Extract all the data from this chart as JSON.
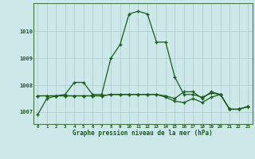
{
  "title": "Graphe pression niveau de la mer (hPa)",
  "background_color": "#cce8e8",
  "grid_color": "#aacccc",
  "line_color": "#1a5c1a",
  "series": [
    [
      1006.9,
      1007.5,
      1007.6,
      1007.65,
      1008.1,
      1008.1,
      1007.65,
      1007.65,
      1009.0,
      1009.5,
      1010.65,
      1010.75,
      1010.65,
      1009.6,
      1009.6,
      1008.3,
      1007.65,
      1007.65,
      1007.55,
      1007.7,
      1007.65,
      1007.1,
      1007.1,
      1007.2
    ],
    [
      1007.6,
      1007.6,
      1007.6,
      1007.6,
      1007.6,
      1007.6,
      1007.6,
      1007.6,
      1007.65,
      1007.65,
      1007.65,
      1007.65,
      1007.65,
      1007.65,
      1007.6,
      1007.5,
      1007.75,
      1007.75,
      1007.5,
      1007.75,
      1007.65,
      1007.1,
      1007.1,
      1007.2
    ],
    [
      1007.6,
      1007.6,
      1007.6,
      1007.6,
      1007.6,
      1007.6,
      1007.6,
      1007.6,
      1007.65,
      1007.65,
      1007.65,
      1007.65,
      1007.65,
      1007.65,
      1007.55,
      1007.4,
      1007.35,
      1007.5,
      1007.35,
      1007.55,
      1007.65,
      1007.1,
      1007.1,
      1007.2
    ]
  ],
  "yticks": [
    1007,
    1008,
    1009,
    1010
  ],
  "xticks": [
    0,
    1,
    2,
    3,
    4,
    5,
    6,
    7,
    8,
    9,
    10,
    11,
    12,
    13,
    14,
    15,
    16,
    17,
    18,
    19,
    20,
    21,
    22,
    23
  ],
  "ylim": [
    1006.55,
    1011.05
  ],
  "xlim": [
    -0.5,
    23.5
  ],
  "figsize": [
    3.2,
    2.0
  ],
  "dpi": 100
}
